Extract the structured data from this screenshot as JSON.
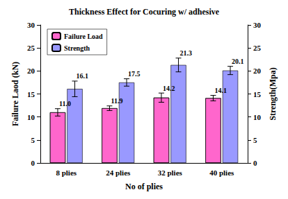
{
  "chart_data": {
    "type": "bar",
    "title": "Thickness Effect for Cocuring w/ adhesive",
    "x_label": "No of plies",
    "y_label": "Failure Laod (kN)",
    "y2_label": "Strength(Mpa)",
    "categories": [
      "8 plies",
      "24 plies",
      "32 plies",
      "40 plies"
    ],
    "series": [
      {
        "name": "Failure Load",
        "color": "#ff66cc",
        "values": [
          11.0,
          11.9,
          14.2,
          14.1
        ],
        "value_labels": [
          "11.0",
          "11.9",
          "14.2",
          "14.1"
        ],
        "errors": [
          0.8,
          0.5,
          1.0,
          0.6
        ]
      },
      {
        "name": "Strength",
        "color": "#9999ff",
        "values": [
          16.1,
          17.5,
          21.3,
          20.1
        ],
        "errors": [
          1.7,
          0.8,
          1.5,
          0.9
        ],
        "axis": "y2"
      }
    ],
    "ylim": [
      0,
      30
    ],
    "yticks": [
      0,
      5,
      10,
      15,
      20,
      25,
      30
    ],
    "y2lim": [
      0,
      30
    ],
    "y2ticks": [
      0,
      5,
      10,
      15,
      20,
      25,
      30
    ],
    "grid": false,
    "data_labels": true,
    "legend": "upper left"
  }
}
